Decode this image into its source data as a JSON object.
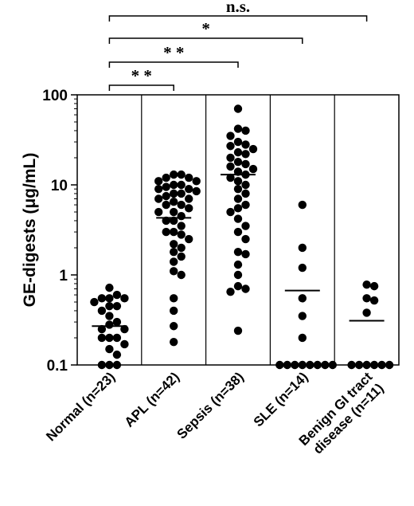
{
  "chart_data": {
    "type": "scatter",
    "subtype": "dot-strip-plot",
    "ylabel": "GE-digests (μg/mL)",
    "yscale": "log",
    "ylim": [
      0.1,
      100
    ],
    "yticks": [
      {
        "value": 0.1,
        "label": "0.1"
      },
      {
        "value": 1,
        "label": "1"
      },
      {
        "value": 10,
        "label": "10"
      },
      {
        "value": 100,
        "label": "100"
      }
    ],
    "marker_color": "#000000",
    "groups": [
      {
        "label_lines": [
          "Normal (n=23)"
        ],
        "mean": 0.27,
        "values": [
          0.72,
          0.6,
          0.55,
          0.55,
          0.55,
          0.5,
          0.45,
          0.45,
          0.4,
          0.35,
          0.3,
          0.28,
          0.25,
          0.25,
          0.2,
          0.2,
          0.2,
          0.17,
          0.15,
          0.13,
          0.1,
          0.1,
          0.1
        ]
      },
      {
        "label_lines": [
          "APL (n=42)"
        ],
        "mean": 4.3,
        "values": [
          13,
          13,
          12,
          12,
          11,
          11,
          10,
          10,
          9.5,
          9,
          9,
          8.5,
          8,
          8,
          7.5,
          7,
          7,
          6.5,
          6,
          6,
          5.5,
          5,
          5,
          4.5,
          4,
          4,
          3.5,
          3,
          3,
          2.8,
          2.5,
          2.2,
          2,
          1.8,
          1.6,
          1.4,
          1.1,
          1.0,
          0.55,
          0.4,
          0.27,
          0.18
        ]
      },
      {
        "label_lines": [
          "Sepsis (n=38)"
        ],
        "mean": 13,
        "values": [
          70,
          42,
          40,
          35,
          30,
          28,
          27,
          25,
          23,
          22,
          20,
          18,
          17,
          16,
          15,
          14,
          13,
          12,
          11,
          10,
          9,
          8,
          7,
          6,
          5.5,
          5,
          4.2,
          3.5,
          3,
          2.5,
          1.8,
          1.7,
          1.3,
          1.0,
          0.75,
          0.7,
          0.65,
          0.24
        ]
      },
      {
        "label_lines": [
          "SLE (n=14)"
        ],
        "mean": 0.67,
        "values": [
          6,
          2,
          1.2,
          0.55,
          0.35,
          0.2,
          0.1,
          0.1,
          0.1,
          0.1,
          0.1,
          0.1,
          0.1,
          0.1
        ]
      },
      {
        "label_lines": [
          "Benign GI tract",
          "disease (n=11)"
        ],
        "mean": 0.31,
        "values": [
          0.78,
          0.75,
          0.55,
          0.52,
          0.38,
          0.1,
          0.1,
          0.1,
          0.1,
          0.1,
          0.1
        ]
      }
    ],
    "comparisons": [
      {
        "from": 0,
        "to": 4,
        "label": "n.s."
      },
      {
        "from": 0,
        "to": 3,
        "label": "*"
      },
      {
        "from": 0,
        "to": 2,
        "label": "* *"
      },
      {
        "from": 0,
        "to": 1,
        "label": "* *"
      }
    ]
  }
}
